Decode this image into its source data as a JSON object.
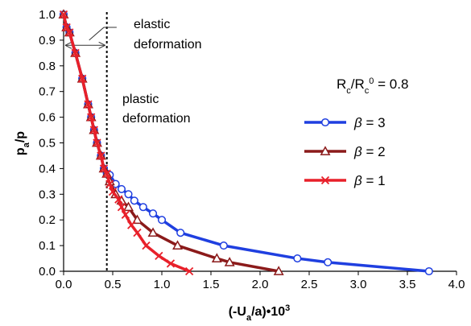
{
  "chart_data": {
    "type": "line",
    "xlabel": "(-U_a/a)•10^3",
    "ylabel": "p_a/p",
    "xlim": [
      0,
      4
    ],
    "ylim": [
      0,
      1
    ],
    "xticks": [
      "0.0",
      "0.5",
      "1.0",
      "1.5",
      "2.0",
      "2.5",
      "3.0",
      "3.5",
      "4.0"
    ],
    "yticks": [
      "0.0",
      "0.1",
      "0.2",
      "0.3",
      "0.4",
      "0.5",
      "0.6",
      "0.7",
      "0.8",
      "0.9",
      "1.0"
    ],
    "grid": false,
    "legend_position": "right",
    "legend_title": "R_c/R_c^0 = 0.8",
    "annotations": {
      "elastic": [
        "elastic",
        "deformation"
      ],
      "plastic": [
        "plastic",
        "deformation"
      ],
      "divider_x": 0.44
    },
    "series": [
      {
        "name": "β = 3",
        "color": "#1f3fe0",
        "marker": "circle",
        "x": [
          0.0,
          0.03,
          0.06,
          0.12,
          0.19,
          0.25,
          0.28,
          0.31,
          0.34,
          0.38,
          0.41,
          0.44,
          0.47,
          0.53,
          0.59,
          0.66,
          0.72,
          0.81,
          0.91,
          1.0,
          1.19,
          1.63,
          2.38,
          2.69,
          3.72
        ],
        "y": [
          1.0,
          0.95,
          0.93,
          0.85,
          0.75,
          0.65,
          0.6,
          0.55,
          0.5,
          0.45,
          0.4,
          0.38,
          0.375,
          0.34,
          0.32,
          0.3,
          0.275,
          0.25,
          0.225,
          0.2,
          0.15,
          0.1,
          0.05,
          0.035,
          0.0
        ]
      },
      {
        "name": "β = 2",
        "color": "#8b1a1a",
        "marker": "triangle",
        "x": [
          0.0,
          0.03,
          0.06,
          0.12,
          0.19,
          0.25,
          0.28,
          0.31,
          0.34,
          0.38,
          0.41,
          0.44,
          0.47,
          0.53,
          0.59,
          0.66,
          0.75,
          0.91,
          1.16,
          1.56,
          1.69,
          2.19
        ],
        "y": [
          1.0,
          0.95,
          0.93,
          0.85,
          0.75,
          0.65,
          0.6,
          0.55,
          0.5,
          0.45,
          0.4,
          0.38,
          0.35,
          0.3,
          0.275,
          0.25,
          0.2,
          0.15,
          0.1,
          0.05,
          0.035,
          0.0
        ]
      },
      {
        "name": "β = 1",
        "color": "#e8202a",
        "marker": "x",
        "x": [
          0.0,
          0.03,
          0.06,
          0.12,
          0.19,
          0.25,
          0.28,
          0.31,
          0.34,
          0.38,
          0.41,
          0.44,
          0.47,
          0.5,
          0.56,
          0.59,
          0.63,
          0.69,
          0.75,
          0.84,
          0.97,
          1.09,
          1.28
        ],
        "y": [
          1.0,
          0.95,
          0.93,
          0.85,
          0.75,
          0.65,
          0.6,
          0.55,
          0.5,
          0.45,
          0.4,
          0.38,
          0.34,
          0.31,
          0.28,
          0.25,
          0.22,
          0.18,
          0.15,
          0.1,
          0.06,
          0.03,
          0.0
        ]
      }
    ]
  }
}
